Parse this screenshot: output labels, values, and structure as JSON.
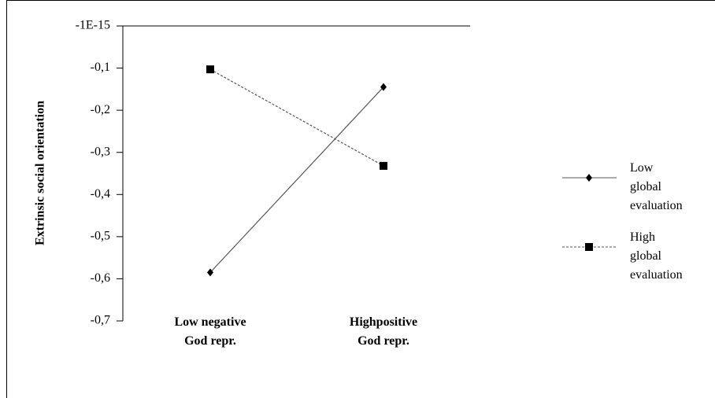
{
  "chart_data": {
    "type": "line",
    "y_label": "Extrinsic social orientation",
    "categories": [
      "Low negative\nGod repr.",
      "Highpositive\nGod repr."
    ],
    "series": [
      {
        "name": "Low global evaluation",
        "color": "#000000",
        "line_color": "#555555",
        "dash": "solid",
        "marker": "diamond",
        "values": [
          -0.585,
          -0.145
        ]
      },
      {
        "name": "High global evaluation",
        "color": "#000000",
        "line_color": "#555555",
        "dash": "dashed",
        "marker": "square",
        "values": [
          -0.103,
          -0.332
        ]
      }
    ],
    "ylim": [
      -0.7,
      0
    ],
    "yticks": [
      {
        "value": 0,
        "label": "-1E-15"
      },
      {
        "value": -0.1,
        "label": "-0,1"
      },
      {
        "value": -0.2,
        "label": "-0,2"
      },
      {
        "value": -0.3,
        "label": "-0,3"
      },
      {
        "value": -0.4,
        "label": "-0,4"
      },
      {
        "value": -0.5,
        "label": "-0,5"
      },
      {
        "value": -0.6,
        "label": "-0,6"
      },
      {
        "value": -0.7,
        "label": "-0,7"
      }
    ],
    "grid": false,
    "legend": "right"
  }
}
